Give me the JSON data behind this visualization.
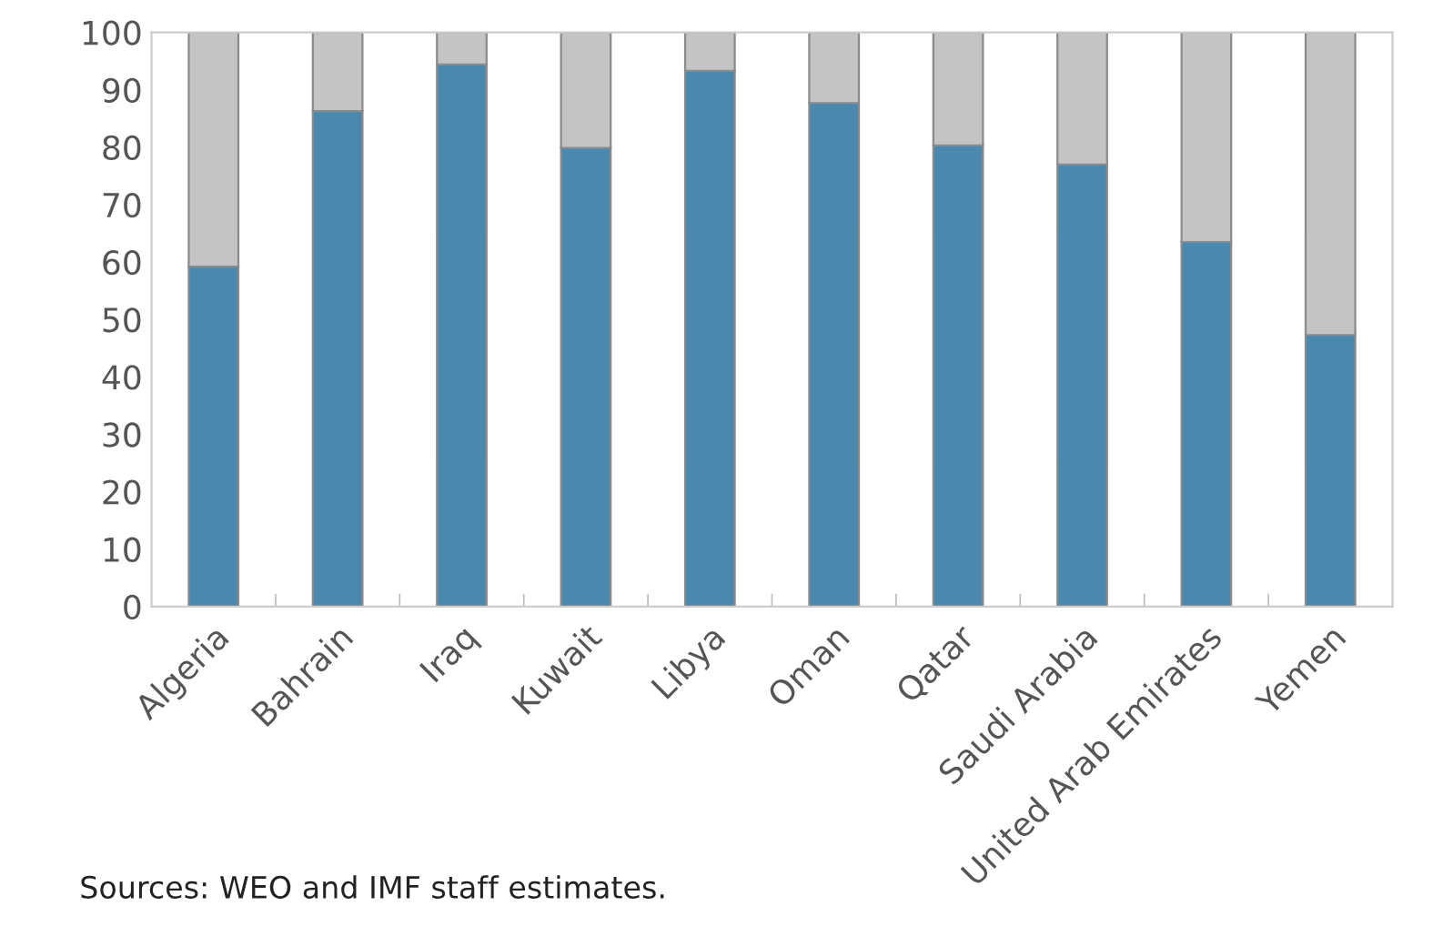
{
  "chart_data": {
    "type": "bar",
    "stacked": true,
    "categories": [
      "Algeria",
      "Bahrain",
      "Iraq",
      "Kuwait",
      "Libya",
      "Oman",
      "Qatar",
      "Saudi Arabia",
      "United Arab Emirates",
      "Yemen"
    ],
    "series": [
      {
        "color": "#4a88ad",
        "values": [
          59.2,
          86.3,
          94.4,
          79.9,
          93.3,
          87.7,
          80.3,
          77.0,
          63.5,
          47.3
        ]
      },
      {
        "color": "#c5c4c5",
        "values": [
          40.8,
          13.7,
          5.6,
          20.1,
          6.7,
          12.3,
          19.7,
          23.0,
          36.5,
          52.7
        ]
      }
    ],
    "ylim": [
      0,
      100
    ],
    "yticks": [
      0,
      10,
      20,
      30,
      40,
      50,
      60,
      70,
      80,
      90,
      100
    ],
    "grid": false,
    "legend": false,
    "annotations": [
      "Sources: WEO and IMF staff estimates."
    ]
  }
}
